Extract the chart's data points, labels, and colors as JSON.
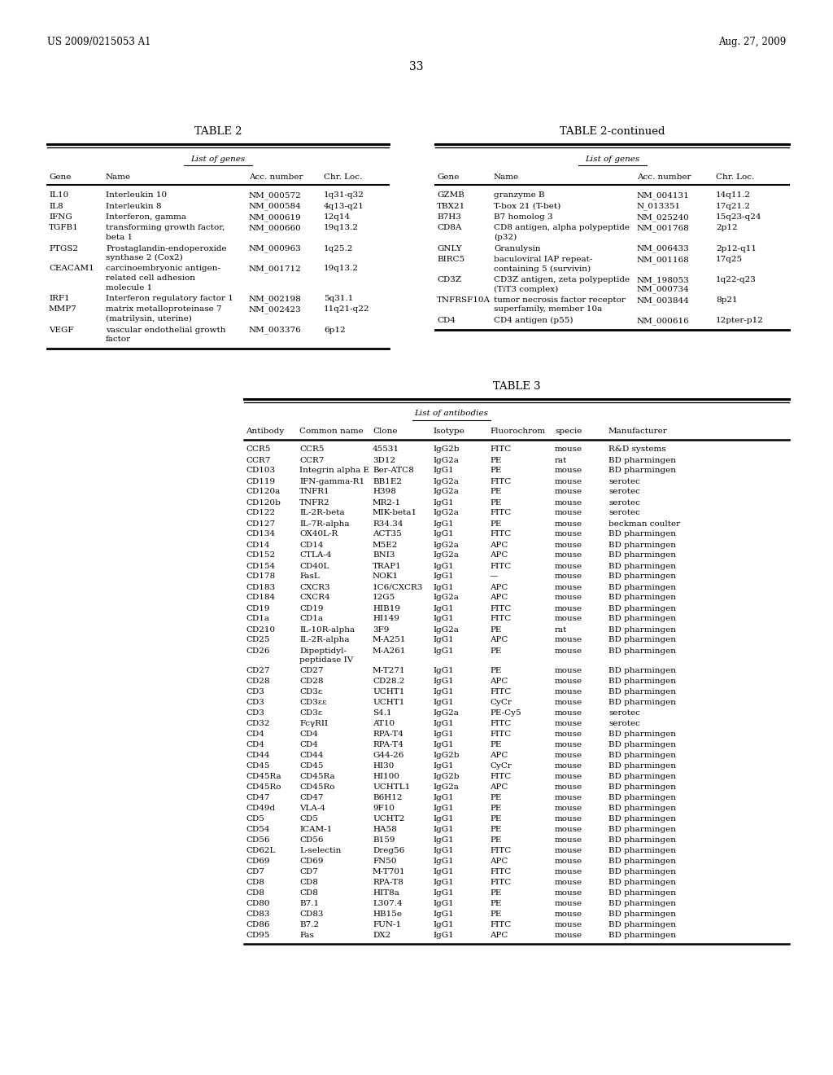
{
  "header_left": "US 2009/0215053 A1",
  "header_right": "Aug. 27, 2009",
  "page_number": "33",
  "table2_title": "TABLE 2",
  "table2cont_title": "TABLE 2-continued",
  "table2_subtitle": "List of genes",
  "table2_headers": [
    "Gene",
    "Name",
    "Acc. number",
    "Chr. Loc."
  ],
  "table2_data": [
    [
      "IL10",
      "Interleukin 10",
      "NM_000572",
      "1q31-q32"
    ],
    [
      "IL8",
      "Interleukin 8",
      "NM_000584",
      "4q13-q21"
    ],
    [
      "IFNG",
      "Interferon, gamma",
      "NM_000619",
      "12q14"
    ],
    [
      "TGFB1",
      "transforming growth factor,\nbeta 1",
      "NM_000660",
      "19q13.2"
    ],
    [
      "PTGS2",
      "Prostaglandin-endoperoxide\nsynthase 2 (Cox2)",
      "NM_000963",
      "1q25.2"
    ],
    [
      "CEACAM1",
      "carcinoembryonic antigen-\nrelated cell adhesion\nmolecule 1",
      "NM_001712",
      "19q13.2"
    ],
    [
      "IRF1",
      "Interferon regulatory factor 1",
      "NM_002198",
      "5q31.1"
    ],
    [
      "MMP7",
      "matrix metalloproteinase 7\n(matrilysin, uterine)",
      "NM_002423",
      "11q21-q22"
    ],
    [
      "VEGF",
      "vascular endothelial growth\nfactor",
      "NM_003376",
      "6p12"
    ]
  ],
  "table2cont_data": [
    [
      "GZMB",
      "granzyme B",
      "NM_004131",
      "14q11.2"
    ],
    [
      "TBX21",
      "T-box 21 (T-bet)",
      "N_013351",
      "17q21.2"
    ],
    [
      "B7H3",
      "B7 homolog 3",
      "NM_025240",
      "15q23-q24"
    ],
    [
      "CD8A",
      "CD8 antigen, alpha polypeptide\n(p32)",
      "NM_001768",
      "2p12"
    ],
    [
      "GNLY",
      "Granulysin",
      "NM_006433",
      "2p12-q11"
    ],
    [
      "BIRC5",
      "baculoviral IAP repeat-\ncontaining 5 (survivin)",
      "NM_001168",
      "17q25"
    ],
    [
      "CD3Z",
      "CD3Z antigen, zeta polypeptide\n(TiT3 complex)",
      "NM_198053\nNM_000734",
      "1q22-q23"
    ],
    [
      "TNFRSF10A",
      "tumor necrosis factor receptor\nsuperfamily, member 10a",
      "NM_003844",
      "8p21"
    ],
    [
      "CD4",
      "CD4 antigen (p55)",
      "NM_000616",
      "12pter-p12"
    ]
  ],
  "table3_title": "TABLE 3",
  "table3_subtitle": "List of antibodies",
  "table3_headers": [
    "Antibody",
    "Common name",
    "Clone",
    "Isotype",
    "Fluorochrom",
    "specie",
    "Manufacturer"
  ],
  "table3_data": [
    [
      "CCR5",
      "CCR5",
      "45531",
      "IgG2b",
      "FITC",
      "mouse",
      "R&D systems"
    ],
    [
      "CCR7",
      "CCR7",
      "3D12",
      "IgG2a",
      "PE",
      "rat",
      "BD pharmingen"
    ],
    [
      "CD103",
      "Integrin alpha E",
      "Ber-ATC8",
      "IgG1",
      "PE",
      "mouse",
      "BD pharmingen"
    ],
    [
      "CD119",
      "IFN-gamma-R1",
      "BB1E2",
      "IgG2a",
      "FITC",
      "mouse",
      "serotec"
    ],
    [
      "CD120a",
      "TNFR1",
      "H398",
      "IgG2a",
      "PE",
      "mouse",
      "serotec"
    ],
    [
      "CD120b",
      "TNFR2",
      "MR2-1",
      "IgG1",
      "PE",
      "mouse",
      "serotec"
    ],
    [
      "CD122",
      "IL-2R-beta",
      "MIK-beta1",
      "IgG2a",
      "FITC",
      "mouse",
      "serotec"
    ],
    [
      "CD127",
      "IL-7R-alpha",
      "R34.34",
      "IgG1",
      "PE",
      "mouse",
      "beckman coulter"
    ],
    [
      "CD134",
      "OX40L-R",
      "ACT35",
      "IgG1",
      "FITC",
      "mouse",
      "BD pharmingen"
    ],
    [
      "CD14",
      "CD14",
      "M5E2",
      "IgG2a",
      "APC",
      "mouse",
      "BD pharmingen"
    ],
    [
      "CD152",
      "CTLA-4",
      "BNI3",
      "IgG2a",
      "APC",
      "mouse",
      "BD pharmingen"
    ],
    [
      "CD154",
      "CD40L",
      "TRAP1",
      "IgG1",
      "FITC",
      "mouse",
      "BD pharmingen"
    ],
    [
      "CD178",
      "FasL",
      "NOK1",
      "IgG1",
      "—",
      "mouse",
      "BD pharmingen"
    ],
    [
      "CD183",
      "CXCR3",
      "1C6/CXCR3",
      "IgG1",
      "APC",
      "mouse",
      "BD pharmingen"
    ],
    [
      "CD184",
      "CXCR4",
      "12G5",
      "IgG2a",
      "APC",
      "mouse",
      "BD pharmingen"
    ],
    [
      "CD19",
      "CD19",
      "HIB19",
      "IgG1",
      "FITC",
      "mouse",
      "BD pharmingen"
    ],
    [
      "CD1a",
      "CD1a",
      "HI149",
      "IgG1",
      "FITC",
      "mouse",
      "BD pharmingen"
    ],
    [
      "CD210",
      "IL-10R-alpha",
      "3F9",
      "IgG2a",
      "PE",
      "rat",
      "BD pharmingen"
    ],
    [
      "CD25",
      "IL-2R-alpha",
      "M-A251",
      "IgG1",
      "APC",
      "mouse",
      "BD pharmingen"
    ],
    [
      "CD26",
      "Dipeptidyl-\npeptidase IV",
      "M-A261",
      "IgG1",
      "PE",
      "mouse",
      "BD pharmingen"
    ],
    [
      "CD27",
      "CD27",
      "M-T271",
      "IgG1",
      "PE",
      "mouse",
      "BD pharmingen"
    ],
    [
      "CD28",
      "CD28",
      "CD28.2",
      "IgG1",
      "APC",
      "mouse",
      "BD pharmingen"
    ],
    [
      "CD3",
      "CD3ε",
      "UCHT1",
      "IgG1",
      "FITC",
      "mouse",
      "BD pharmingen"
    ],
    [
      "CD3",
      "CD3εε",
      "UCHT1",
      "IgG1",
      "CyCr",
      "mouse",
      "BD pharmingen"
    ],
    [
      "CD3",
      "CD3ε",
      "S4.1",
      "IgG2a",
      "PE-Cy5",
      "mouse",
      "serotec"
    ],
    [
      "CD32",
      "FcγRII",
      "AT10",
      "IgG1",
      "FITC",
      "mouse",
      "serotec"
    ],
    [
      "CD4",
      "CD4",
      "RPA-T4",
      "IgG1",
      "FITC",
      "mouse",
      "BD pharmingen"
    ],
    [
      "CD4",
      "CD4",
      "RPA-T4",
      "IgG1",
      "PE",
      "mouse",
      "BD pharmingen"
    ],
    [
      "CD44",
      "CD44",
      "G44-26",
      "IgG2b",
      "APC",
      "mouse",
      "BD pharmingen"
    ],
    [
      "CD45",
      "CD45",
      "HI30",
      "IgG1",
      "CyCr",
      "mouse",
      "BD pharmingen"
    ],
    [
      "CD45Ra",
      "CD45Ra",
      "HI100",
      "IgG2b",
      "FITC",
      "mouse",
      "BD pharmingen"
    ],
    [
      "CD45Ro",
      "CD45Ro",
      "UCHTL1",
      "IgG2a",
      "APC",
      "mouse",
      "BD pharmingen"
    ],
    [
      "CD47",
      "CD47",
      "B6H12",
      "IgG1",
      "PE",
      "mouse",
      "BD pharmingen"
    ],
    [
      "CD49d",
      "VLA-4",
      "9F10",
      "IgG1",
      "PE",
      "mouse",
      "BD pharmingen"
    ],
    [
      "CD5",
      "CD5",
      "UCHT2",
      "IgG1",
      "PE",
      "mouse",
      "BD pharmingen"
    ],
    [
      "CD54",
      "ICAM-1",
      "HA58",
      "IgG1",
      "PE",
      "mouse",
      "BD pharmingen"
    ],
    [
      "CD56",
      "CD56",
      "B159",
      "IgG1",
      "PE",
      "mouse",
      "BD pharmingen"
    ],
    [
      "CD62L",
      "L-selectin",
      "Dreg56",
      "IgG1",
      "FITC",
      "mouse",
      "BD pharmingen"
    ],
    [
      "CD69",
      "CD69",
      "FN50",
      "IgG1",
      "APC",
      "mouse",
      "BD pharmingen"
    ],
    [
      "CD7",
      "CD7",
      "M-T701",
      "IgG1",
      "FITC",
      "mouse",
      "BD pharmingen"
    ],
    [
      "CD8",
      "CD8",
      "RPA-T8",
      "IgG1",
      "FITC",
      "mouse",
      "BD pharmingen"
    ],
    [
      "CD8",
      "CD8",
      "HIT8a",
      "IgG1",
      "PE",
      "mouse",
      "BD pharmingen"
    ],
    [
      "CD80",
      "B7.1",
      "L307.4",
      "IgG1",
      "PE",
      "mouse",
      "BD pharmingen"
    ],
    [
      "CD83",
      "CD83",
      "HB15e",
      "IgG1",
      "PE",
      "mouse",
      "BD pharmingen"
    ],
    [
      "CD86",
      "B7.2",
      "FUN-1",
      "IgG1",
      "FITC",
      "mouse",
      "BD pharmingen"
    ],
    [
      "CD95",
      "Fas",
      "DX2",
      "IgG1",
      "APC",
      "mouse",
      "BD pharmingen"
    ]
  ],
  "bg_color": "#ffffff",
  "text_color": "#000000",
  "font_size": 7.5,
  "header_font_size": 8.5,
  "title_font_size": 9.5
}
